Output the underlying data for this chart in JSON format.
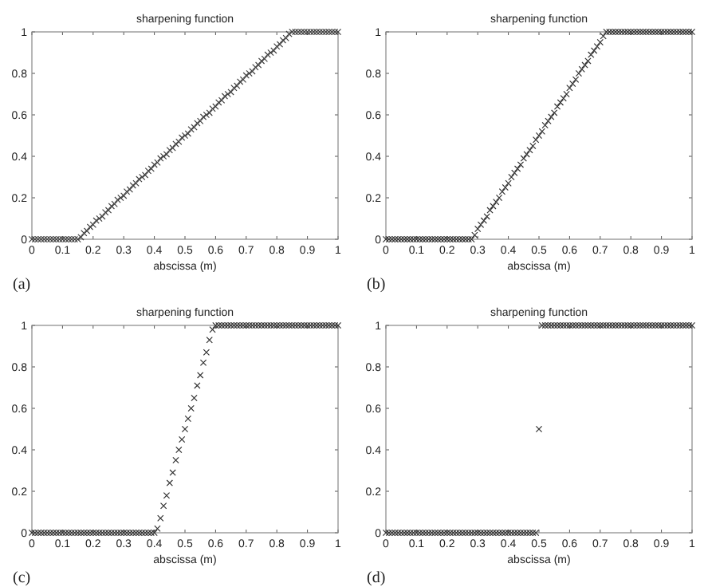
{
  "chart_data": [
    {
      "type": "scatter",
      "title": "sharpening function",
      "xlabel": "abscissa (m)",
      "annotations": [
        "(a)"
      ],
      "color": "#404040",
      "marker": "cross",
      "xlim": [
        0,
        1
      ],
      "ylim": [
        0,
        1
      ],
      "xticks": [
        0,
        0.1,
        0.2,
        0.3,
        0.4,
        0.5,
        0.6,
        0.7,
        0.8,
        0.9,
        1
      ],
      "yticks": [
        0,
        0.2,
        0.4,
        0.6,
        0.8,
        1
      ],
      "x": [
        0,
        0.01,
        0.02,
        0.03,
        0.04,
        0.05,
        0.06,
        0.07,
        0.08,
        0.09,
        0.1,
        0.11,
        0.12,
        0.13,
        0.14,
        0.15,
        0.16,
        0.17,
        0.18,
        0.19,
        0.2,
        0.21,
        0.22,
        0.23,
        0.24,
        0.25,
        0.26,
        0.27,
        0.28,
        0.29,
        0.3,
        0.31,
        0.32,
        0.33,
        0.34,
        0.35,
        0.36,
        0.37,
        0.38,
        0.39,
        0.4,
        0.41,
        0.42,
        0.43,
        0.44,
        0.45,
        0.46,
        0.47,
        0.48,
        0.49,
        0.5,
        0.51,
        0.52,
        0.53,
        0.54,
        0.55,
        0.56,
        0.57,
        0.58,
        0.59,
        0.6,
        0.61,
        0.62,
        0.63,
        0.64,
        0.65,
        0.66,
        0.67,
        0.68,
        0.69,
        0.7,
        0.71,
        0.72,
        0.73,
        0.74,
        0.75,
        0.76,
        0.77,
        0.78,
        0.79,
        0.8,
        0.81,
        0.82,
        0.83,
        0.84,
        0.85,
        0.86,
        0.87,
        0.88,
        0.89,
        0.9,
        0.91,
        0.92,
        0.93,
        0.94,
        0.95,
        0.96,
        0.97,
        0.98,
        0.99,
        1
      ],
      "values": [
        0,
        0,
        0,
        0,
        0,
        0,
        0,
        0,
        0,
        0,
        0,
        0,
        0,
        0,
        0,
        0,
        0.01,
        0.03,
        0.04,
        0.06,
        0.07,
        0.09,
        0.1,
        0.11,
        0.13,
        0.14,
        0.16,
        0.17,
        0.19,
        0.2,
        0.21,
        0.23,
        0.24,
        0.26,
        0.27,
        0.29,
        0.3,
        0.31,
        0.33,
        0.34,
        0.36,
        0.37,
        0.39,
        0.4,
        0.41,
        0.43,
        0.44,
        0.46,
        0.47,
        0.49,
        0.5,
        0.51,
        0.53,
        0.54,
        0.56,
        0.57,
        0.59,
        0.6,
        0.61,
        0.63,
        0.64,
        0.66,
        0.67,
        0.69,
        0.7,
        0.71,
        0.73,
        0.74,
        0.76,
        0.77,
        0.79,
        0.8,
        0.81,
        0.83,
        0.84,
        0.86,
        0.87,
        0.89,
        0.9,
        0.91,
        0.93,
        0.94,
        0.96,
        0.97,
        0.99,
        1,
        1,
        1,
        1,
        1,
        1,
        1,
        1,
        1,
        1,
        1,
        1,
        1,
        1,
        1,
        1
      ]
    },
    {
      "type": "scatter",
      "title": "sharpening function",
      "xlabel": "abscissa (m)",
      "annotations": [
        "(b)"
      ],
      "color": "#303030",
      "marker": "cross",
      "xlim": [
        0,
        1
      ],
      "ylim": [
        0,
        1
      ],
      "xticks": [
        0,
        0.1,
        0.2,
        0.3,
        0.4,
        0.5,
        0.6,
        0.7,
        0.8,
        0.9,
        1
      ],
      "yticks": [
        0,
        0.2,
        0.4,
        0.6,
        0.8,
        1
      ],
      "x": [
        0,
        0.01,
        0.02,
        0.03,
        0.04,
        0.05,
        0.06,
        0.07,
        0.08,
        0.09,
        0.1,
        0.11,
        0.12,
        0.13,
        0.14,
        0.15,
        0.16,
        0.17,
        0.18,
        0.19,
        0.2,
        0.21,
        0.22,
        0.23,
        0.24,
        0.25,
        0.26,
        0.27,
        0.28,
        0.29,
        0.3,
        0.31,
        0.32,
        0.33,
        0.34,
        0.35,
        0.36,
        0.37,
        0.38,
        0.39,
        0.4,
        0.41,
        0.42,
        0.43,
        0.44,
        0.45,
        0.46,
        0.47,
        0.48,
        0.49,
        0.5,
        0.51,
        0.52,
        0.53,
        0.54,
        0.55,
        0.56,
        0.57,
        0.58,
        0.59,
        0.6,
        0.61,
        0.62,
        0.63,
        0.64,
        0.65,
        0.66,
        0.67,
        0.68,
        0.69,
        0.7,
        0.71,
        0.72,
        0.73,
        0.74,
        0.75,
        0.76,
        0.77,
        0.78,
        0.79,
        0.8,
        0.81,
        0.82,
        0.83,
        0.84,
        0.85,
        0.86,
        0.87,
        0.88,
        0.89,
        0.9,
        0.91,
        0.92,
        0.93,
        0.94,
        0.95,
        0.96,
        0.97,
        0.98,
        0.99,
        1
      ],
      "values": [
        0,
        0,
        0,
        0,
        0,
        0,
        0,
        0,
        0,
        0,
        0,
        0,
        0,
        0,
        0,
        0,
        0,
        0,
        0,
        0,
        0,
        0,
        0,
        0,
        0,
        0,
        0,
        0,
        0,
        0.02,
        0.05,
        0.07,
        0.09,
        0.11,
        0.14,
        0.16,
        0.18,
        0.2,
        0.23,
        0.25,
        0.27,
        0.3,
        0.32,
        0.34,
        0.36,
        0.39,
        0.41,
        0.43,
        0.45,
        0.48,
        0.5,
        0.52,
        0.55,
        0.57,
        0.59,
        0.61,
        0.64,
        0.66,
        0.68,
        0.7,
        0.73,
        0.75,
        0.77,
        0.8,
        0.82,
        0.84,
        0.86,
        0.89,
        0.91,
        0.93,
        0.95,
        0.98,
        1,
        1,
        1,
        1,
        1,
        1,
        1,
        1,
        1,
        1,
        1,
        1,
        1,
        1,
        1,
        1,
        1,
        1,
        1,
        1,
        1,
        1,
        1,
        1,
        1,
        1,
        1,
        1,
        1
      ]
    },
    {
      "type": "scatter",
      "title": "sharpening function",
      "xlabel": "abscissa (m)",
      "annotations": [
        "(c)"
      ],
      "color": "#303030",
      "marker": "cross",
      "xlim": [
        0,
        1
      ],
      "ylim": [
        0,
        1
      ],
      "xticks": [
        0,
        0.1,
        0.2,
        0.3,
        0.4,
        0.5,
        0.6,
        0.7,
        0.8,
        0.9,
        1
      ],
      "yticks": [
        0,
        0.2,
        0.4,
        0.6,
        0.8,
        1
      ],
      "x": [
        0,
        0.01,
        0.02,
        0.03,
        0.04,
        0.05,
        0.06,
        0.07,
        0.08,
        0.09,
        0.1,
        0.11,
        0.12,
        0.13,
        0.14,
        0.15,
        0.16,
        0.17,
        0.18,
        0.19,
        0.2,
        0.21,
        0.22,
        0.23,
        0.24,
        0.25,
        0.26,
        0.27,
        0.28,
        0.29,
        0.3,
        0.31,
        0.32,
        0.33,
        0.34,
        0.35,
        0.36,
        0.37,
        0.38,
        0.39,
        0.4,
        0.41,
        0.42,
        0.43,
        0.44,
        0.45,
        0.46,
        0.47,
        0.48,
        0.49,
        0.5,
        0.51,
        0.52,
        0.53,
        0.54,
        0.55,
        0.56,
        0.57,
        0.58,
        0.59,
        0.6,
        0.61,
        0.62,
        0.63,
        0.64,
        0.65,
        0.66,
        0.67,
        0.68,
        0.69,
        0.7,
        0.71,
        0.72,
        0.73,
        0.74,
        0.75,
        0.76,
        0.77,
        0.78,
        0.79,
        0.8,
        0.81,
        0.82,
        0.83,
        0.84,
        0.85,
        0.86,
        0.87,
        0.88,
        0.89,
        0.9,
        0.91,
        0.92,
        0.93,
        0.94,
        0.95,
        0.96,
        0.97,
        0.98,
        0.99,
        1
      ],
      "values": [
        0,
        0,
        0,
        0,
        0,
        0,
        0,
        0,
        0,
        0,
        0,
        0,
        0,
        0,
        0,
        0,
        0,
        0,
        0,
        0,
        0,
        0,
        0,
        0,
        0,
        0,
        0,
        0,
        0,
        0,
        0,
        0,
        0,
        0,
        0,
        0,
        0,
        0,
        0,
        0,
        0,
        0.02,
        0.07,
        0.13,
        0.18,
        0.24,
        0.29,
        0.35,
        0.4,
        0.45,
        0.5,
        0.55,
        0.6,
        0.65,
        0.71,
        0.76,
        0.82,
        0.87,
        0.93,
        0.98,
        1,
        1,
        1,
        1,
        1,
        1,
        1,
        1,
        1,
        1,
        1,
        1,
        1,
        1,
        1,
        1,
        1,
        1,
        1,
        1,
        1,
        1,
        1,
        1,
        1,
        1,
        1,
        1,
        1,
        1,
        1,
        1,
        1,
        1,
        1,
        1,
        1,
        1,
        1,
        1,
        1
      ]
    },
    {
      "type": "scatter",
      "title": "sharpening function",
      "xlabel": "abscissa (m)",
      "annotations": [
        "(d)"
      ],
      "color": "#303030",
      "marker": "cross",
      "xlim": [
        0,
        1
      ],
      "ylim": [
        0,
        1
      ],
      "xticks": [
        0,
        0.1,
        0.2,
        0.3,
        0.4,
        0.5,
        0.6,
        0.7,
        0.8,
        0.9,
        1
      ],
      "yticks": [
        0,
        0.2,
        0.4,
        0.6,
        0.8,
        1
      ],
      "x": [
        0,
        0.01,
        0.02,
        0.03,
        0.04,
        0.05,
        0.06,
        0.07,
        0.08,
        0.09,
        0.1,
        0.11,
        0.12,
        0.13,
        0.14,
        0.15,
        0.16,
        0.17,
        0.18,
        0.19,
        0.2,
        0.21,
        0.22,
        0.23,
        0.24,
        0.25,
        0.26,
        0.27,
        0.28,
        0.29,
        0.3,
        0.31,
        0.32,
        0.33,
        0.34,
        0.35,
        0.36,
        0.37,
        0.38,
        0.39,
        0.4,
        0.41,
        0.42,
        0.43,
        0.44,
        0.45,
        0.46,
        0.47,
        0.48,
        0.49,
        0.5,
        0.51,
        0.52,
        0.53,
        0.54,
        0.55,
        0.56,
        0.57,
        0.58,
        0.59,
        0.6,
        0.61,
        0.62,
        0.63,
        0.64,
        0.65,
        0.66,
        0.67,
        0.68,
        0.69,
        0.7,
        0.71,
        0.72,
        0.73,
        0.74,
        0.75,
        0.76,
        0.77,
        0.78,
        0.79,
        0.8,
        0.81,
        0.82,
        0.83,
        0.84,
        0.85,
        0.86,
        0.87,
        0.88,
        0.89,
        0.9,
        0.91,
        0.92,
        0.93,
        0.94,
        0.95,
        0.96,
        0.97,
        0.98,
        0.99,
        1
      ],
      "values": [
        0,
        0,
        0,
        0,
        0,
        0,
        0,
        0,
        0,
        0,
        0,
        0,
        0,
        0,
        0,
        0,
        0,
        0,
        0,
        0,
        0,
        0,
        0,
        0,
        0,
        0,
        0,
        0,
        0,
        0,
        0,
        0,
        0,
        0,
        0,
        0,
        0,
        0,
        0,
        0,
        0,
        0,
        0,
        0,
        0,
        0,
        0,
        0,
        0,
        0,
        0.5,
        1,
        1,
        1,
        1,
        1,
        1,
        1,
        1,
        1,
        1,
        1,
        1,
        1,
        1,
        1,
        1,
        1,
        1,
        1,
        1,
        1,
        1,
        1,
        1,
        1,
        1,
        1,
        1,
        1,
        1,
        1,
        1,
        1,
        1,
        1,
        1,
        1,
        1,
        1,
        1,
        1,
        1,
        1,
        1,
        1,
        1,
        1,
        1,
        1,
        1
      ]
    }
  ]
}
